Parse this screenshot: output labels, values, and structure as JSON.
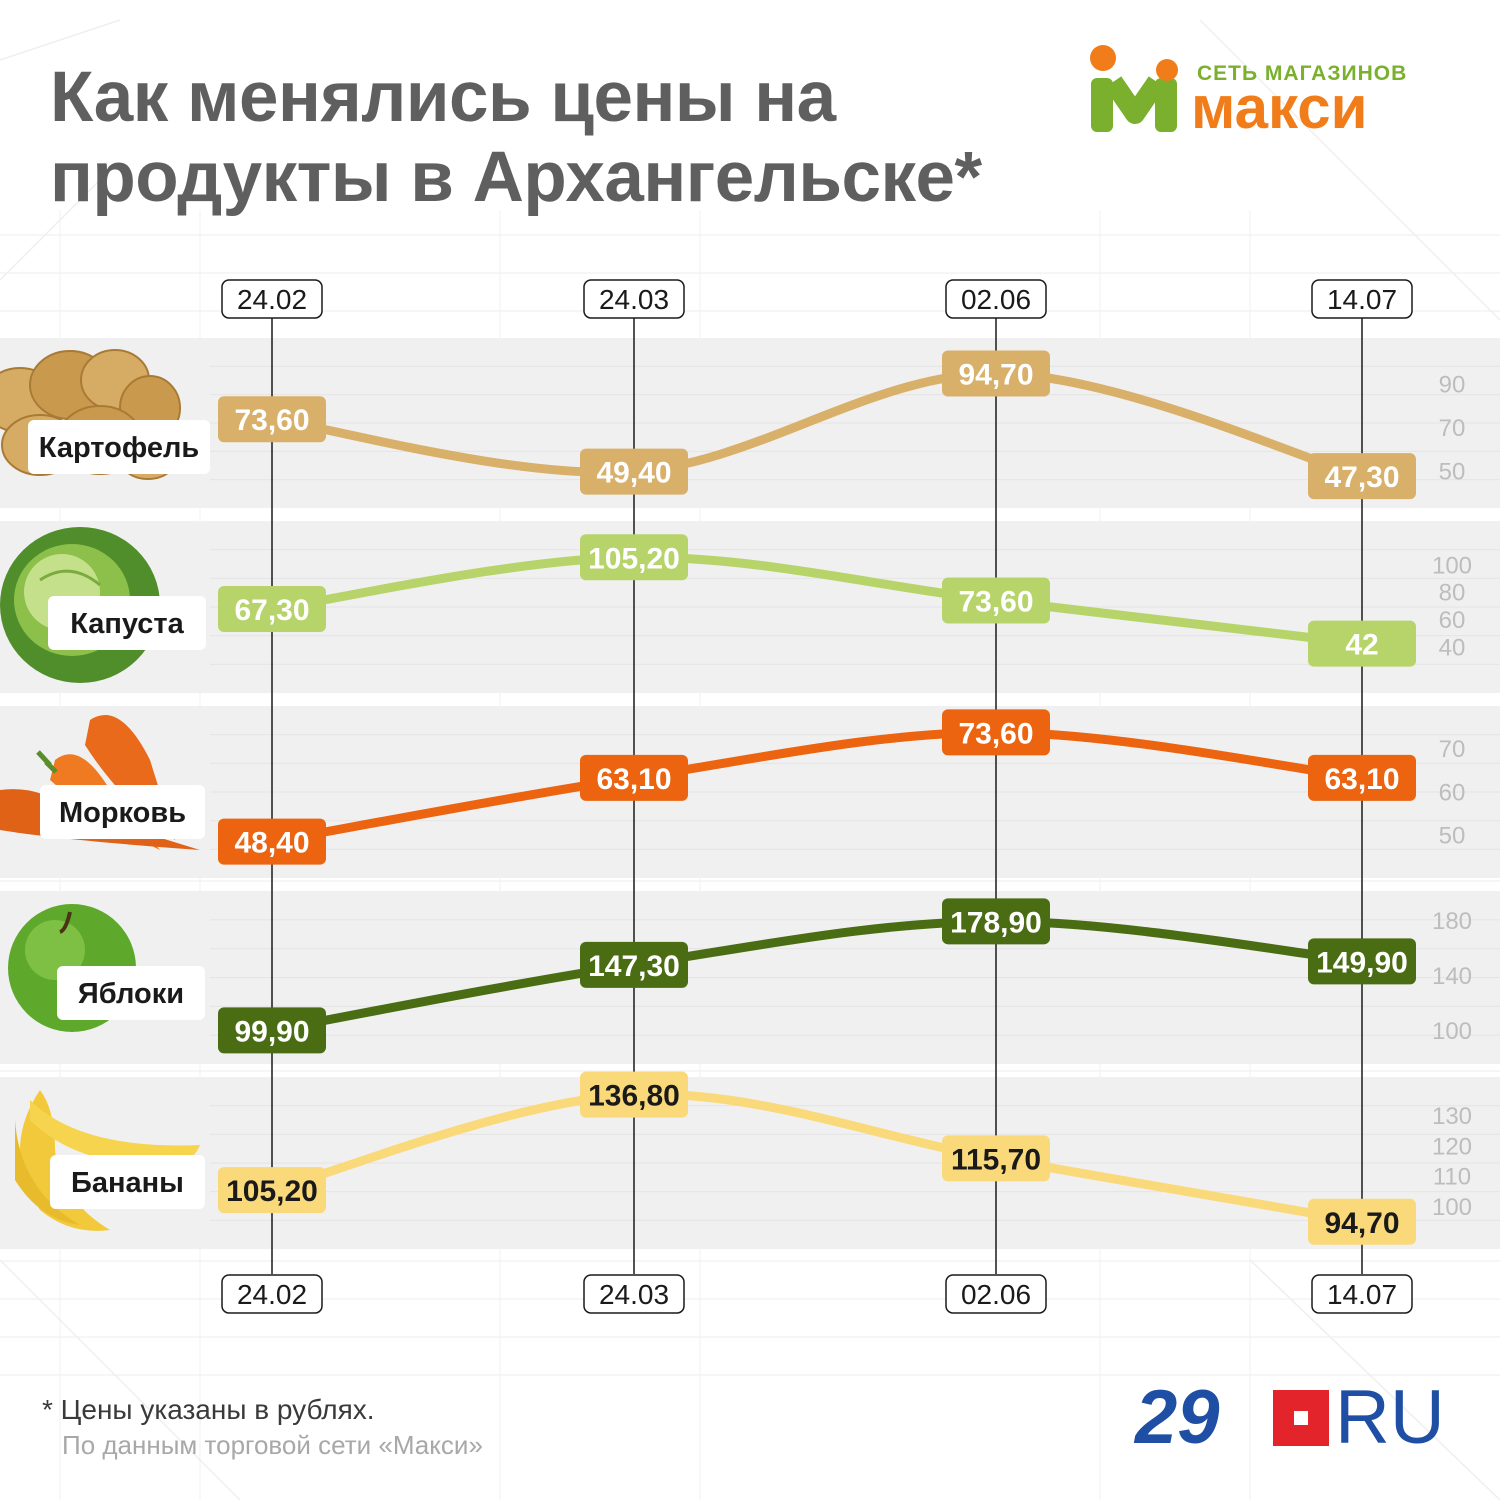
{
  "title": "Как менялись цены на продукты в Архангельске*",
  "logo_maxi": {
    "network": "СЕТЬ МАГАЗИНОВ",
    "name": "макси"
  },
  "footnote": "* Цены указаны в рублях.",
  "source": "По данным торговой сети «Макси»",
  "logo_29": {
    "num": "29",
    "ru": "RU"
  },
  "chart_data": {
    "type": "line",
    "dates": [
      "24.02",
      "24.03",
      "02.06",
      "14.07"
    ],
    "series": [
      {
        "name": "Картофель",
        "icon": "potato-icon",
        "color": "#d8b06a",
        "label_color": "#ffffff",
        "values": [
          73.6,
          49.4,
          94.7,
          47.3
        ],
        "labels": [
          "73,60",
          "49,40",
          "94,70",
          "47,30"
        ],
        "ylim": [
          40,
          100
        ],
        "ticks": [
          50,
          70,
          90
        ]
      },
      {
        "name": "Капуста",
        "icon": "cabbage-icon",
        "color": "#b7d46b",
        "label_color": "#ffffff",
        "values": [
          67.3,
          105.2,
          73.6,
          42
        ],
        "labels": [
          "67,30",
          "105,20",
          "73,60",
          "42"
        ],
        "ylim": [
          30,
          112
        ],
        "ticks": [
          40,
          60,
          80,
          100
        ]
      },
      {
        "name": "Морковь",
        "icon": "carrot-icon",
        "color": "#ec6410",
        "label_color": "#ffffff",
        "values": [
          48.4,
          63.1,
          73.6,
          63.1
        ],
        "labels": [
          "48,40",
          "63,10",
          "73,60",
          "63,10"
        ],
        "ylim": [
          46,
          76
        ],
        "ticks": [
          50,
          60,
          70
        ]
      },
      {
        "name": "Яблоки",
        "icon": "apple-icon",
        "color": "#4a6d14",
        "label_color": "#ffffff",
        "values": [
          99.9,
          147.3,
          178.9,
          149.9
        ],
        "labels": [
          "99,90",
          "147,30",
          "178,90",
          "149,90"
        ],
        "ylim": [
          90,
          190
        ],
        "ticks": [
          100,
          140,
          180
        ]
      },
      {
        "name": "Бананы",
        "icon": "banana-icon",
        "color": "#fad97b",
        "label_color": "#1a1a1a",
        "values": [
          105.2,
          136.8,
          115.7,
          94.7
        ],
        "labels": [
          "105,20",
          "136,80",
          "115,70",
          "94,70"
        ],
        "ylim": [
          90,
          140
        ],
        "ticks": [
          100,
          110,
          120,
          130
        ]
      }
    ]
  }
}
